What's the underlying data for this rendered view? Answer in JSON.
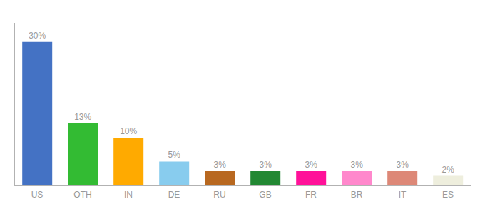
{
  "chart_data": {
    "type": "bar",
    "categories": [
      "US",
      "OTH",
      "IN",
      "DE",
      "RU",
      "GB",
      "FR",
      "BR",
      "IT",
      "ES"
    ],
    "values": [
      30,
      13,
      10,
      5,
      3,
      3,
      3,
      3,
      3,
      2
    ],
    "value_labels": [
      "30%",
      "13%",
      "10%",
      "5%",
      "3%",
      "3%",
      "3%",
      "3%",
      "3%",
      "2%"
    ],
    "colors": [
      "#4472c4",
      "#33bb33",
      "#ffaa00",
      "#88ccee",
      "#b86820",
      "#228833",
      "#ff1199",
      "#ff88cc",
      "#dd8877",
      "#eeeedd"
    ],
    "ylim": [
      0,
      34
    ],
    "tick_labels": "x",
    "grid": false,
    "data_labels": true
  }
}
